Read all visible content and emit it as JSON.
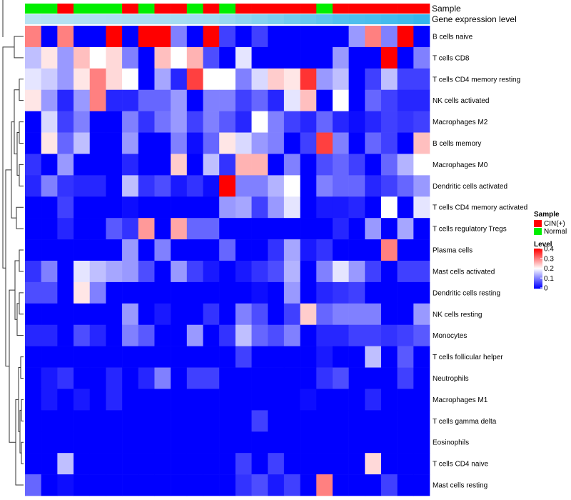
{
  "chart_data": {
    "type": "heatmap",
    "title": "",
    "annotations": [
      {
        "name": "Sample",
        "categories": [
          "CIN(+)",
          "Normal"
        ],
        "colors": {
          "CIN(+)": "#ff0000",
          "Normal": "#00ee00"
        },
        "values": [
          "Normal",
          "Normal",
          "CIN(+)",
          "Normal",
          "Normal",
          "Normal",
          "CIN(+)",
          "Normal",
          "CIN(+)",
          "CIN(+)",
          "Normal",
          "CIN(+)",
          "Normal",
          "CIN(+)",
          "CIN(+)",
          "CIN(+)",
          "CIN(+)",
          "CIN(+)",
          "Normal",
          "CIN(+)",
          "CIN(+)",
          "CIN(+)",
          "CIN(+)",
          "CIN(+)",
          "CIN(+)"
        ]
      },
      {
        "name": "Gene expression level",
        "color_low": "#b7e2f3",
        "color_high": "#35b6ec",
        "values": [
          0.35,
          0.36,
          0.37,
          0.38,
          0.39,
          0.4,
          0.41,
          0.42,
          0.43,
          0.44,
          0.45,
          0.46,
          0.5,
          0.55,
          0.6,
          0.65,
          0.7,
          0.75,
          0.8,
          0.85,
          0.88,
          0.9,
          0.93,
          0.96,
          1.0
        ]
      }
    ],
    "rows": [
      "B cells naive",
      "T cells CD8",
      "T cells CD4 memory resting",
      "NK cells activated",
      "Macrophages M2",
      "B cells memory",
      "Macrophages M0",
      "Dendritic cells activated",
      "T cells CD4 memory activated",
      "T cells regulatory  Tregs",
      "Plasma cells",
      "Mast cells activated",
      "Dendritic cells resting",
      "NK cells resting",
      "Monocytes",
      "T cells follicular helper",
      "Neutrophils",
      "Macrophages M1",
      "T cells gamma delta",
      "Eosinophils",
      "T cells CD4 naive",
      "Mast cells resting"
    ],
    "values": [
      [
        0.3,
        0,
        0.3,
        0,
        0,
        0.4,
        0,
        0.4,
        0.4,
        0.1,
        0,
        0.4,
        0.05,
        0,
        0.05,
        0,
        0,
        0,
        0,
        0,
        0.12,
        0.3,
        0.1,
        0.4,
        0
      ],
      [
        0.15,
        0.22,
        0.12,
        0.25,
        0.2,
        0.23,
        0.1,
        0,
        0.25,
        0.2,
        0.26,
        0.06,
        0,
        0.18,
        0,
        0,
        0,
        0,
        0,
        0.12,
        0,
        0,
        0.4,
        0,
        0.1
      ],
      [
        0.18,
        0.16,
        0.12,
        0.22,
        0.3,
        0.23,
        0.2,
        0,
        0.13,
        0.03,
        0.35,
        0.2,
        0.2,
        0.1,
        0.17,
        0.24,
        0.22,
        0.36,
        0.12,
        0.15,
        0,
        0.05,
        0.15,
        0.05,
        0.05
      ],
      [
        0.22,
        0.12,
        0.03,
        0.12,
        0.3,
        0.03,
        0.03,
        0.08,
        0.08,
        0.12,
        0,
        0.1,
        0.1,
        0.05,
        0.08,
        0.03,
        0.18,
        0.25,
        0,
        0.2,
        0,
        0.08,
        0.05,
        0.03,
        0.03
      ],
      [
        0,
        0.17,
        0.05,
        0.1,
        0,
        0,
        0.1,
        0.04,
        0.09,
        0.12,
        0.05,
        0.1,
        0.07,
        0.03,
        0.2,
        0.1,
        0.05,
        0.03,
        0.08,
        0.03,
        0.01,
        0.03,
        0.05,
        0.04,
        0.05
      ],
      [
        0,
        0.22,
        0.08,
        0.15,
        0,
        0,
        0.12,
        0,
        0,
        0.1,
        0.01,
        0.08,
        0.22,
        0.17,
        0.12,
        0.1,
        0,
        0.05,
        0.35,
        0.1,
        0,
        0.08,
        0.05,
        0,
        0.25
      ],
      [
        0.04,
        0,
        0.12,
        0,
        0,
        0,
        0.03,
        0,
        0,
        0.24,
        0,
        0.15,
        0.04,
        0.26,
        0.26,
        0,
        0.1,
        0,
        0.06,
        0.08,
        0.05,
        0,
        0.08,
        0.14,
        0.2
      ],
      [
        0.03,
        0.1,
        0.04,
        0.03,
        0.03,
        0,
        0.15,
        0.04,
        0.06,
        0.02,
        0.04,
        0.01,
        0.4,
        0.1,
        0.1,
        0.14,
        0.2,
        0,
        0.1,
        0.08,
        0.08,
        0.03,
        0.05,
        0.08,
        0.12
      ],
      [
        0,
        0,
        0.05,
        0,
        0,
        0,
        0.01,
        0,
        0,
        0,
        0,
        0,
        0.12,
        0.13,
        0.05,
        0.12,
        0.18,
        0,
        0.02,
        0.02,
        0.03,
        0,
        0.2,
        0,
        0.18
      ],
      [
        0,
        0,
        0.03,
        0,
        0,
        0.07,
        0.04,
        0.28,
        0,
        0.27,
        0.08,
        0.08,
        0,
        0,
        0,
        0,
        0,
        0,
        0,
        0.03,
        0,
        0.12,
        0,
        0.13,
        0
      ],
      [
        0,
        0,
        0,
        0,
        0,
        0,
        0.12,
        0,
        0.1,
        0,
        0,
        0,
        0.08,
        0,
        0,
        0.04,
        0.13,
        0.02,
        0.04,
        0,
        0,
        0,
        0.3,
        0,
        0
      ],
      [
        0.04,
        0.1,
        0,
        0.18,
        0.15,
        0.13,
        0.12,
        0.06,
        0,
        0.12,
        0.05,
        0.02,
        0,
        0.02,
        0.04,
        0.06,
        0.14,
        0,
        0.1,
        0.18,
        0.12,
        0.05,
        0,
        0.05,
        0.05
      ],
      [
        0.06,
        0.06,
        0,
        0.22,
        0.1,
        0,
        0,
        0,
        0,
        0,
        0,
        0,
        0,
        0,
        0.01,
        0,
        0.12,
        0,
        0.03,
        0.04,
        0.05,
        0,
        0,
        0,
        0
      ],
      [
        0,
        0,
        0,
        0,
        0,
        0,
        0.12,
        0,
        0.02,
        0,
        0,
        0.04,
        0,
        0.1,
        0.06,
        0,
        0.05,
        0.24,
        0.08,
        0.1,
        0.1,
        0.1,
        0,
        0,
        0.12
      ],
      [
        0.03,
        0.03,
        0,
        0.06,
        0.03,
        0,
        0.1,
        0.07,
        0,
        0,
        0.12,
        0,
        0.04,
        0.15,
        0.08,
        0.06,
        0.1,
        0,
        0.03,
        0.03,
        0.05,
        0.05,
        0.04,
        0.05,
        0.07
      ],
      [
        0,
        0,
        0,
        0,
        0,
        0,
        0,
        0,
        0,
        0,
        0,
        0,
        0,
        0.05,
        0,
        0,
        0,
        0,
        0.02,
        0,
        0,
        0.15,
        0,
        0.07,
        0
      ],
      [
        0,
        0.02,
        0.04,
        0,
        0,
        0.03,
        0,
        0.03,
        0.1,
        0,
        0.05,
        0.05,
        0,
        0,
        0,
        0,
        0,
        0,
        0.04,
        0.06,
        0,
        0,
        0,
        0.05,
        0
      ],
      [
        0,
        0.02,
        0,
        0.02,
        0,
        0.03,
        0,
        0,
        0,
        0,
        0,
        0,
        0,
        0,
        0,
        0,
        0,
        0.01,
        0,
        0,
        0,
        0.03,
        0,
        0,
        0
      ],
      [
        0,
        0,
        0,
        0,
        0,
        0,
        0,
        0,
        0,
        0,
        0,
        0,
        0,
        0,
        0.05,
        0,
        0,
        0,
        0,
        0,
        0,
        0,
        0,
        0,
        0
      ],
      [
        0,
        0,
        0,
        0,
        0,
        0,
        0,
        0,
        0,
        0,
        0,
        0,
        0,
        0,
        0,
        0,
        0,
        0,
        0,
        0,
        0,
        0,
        0,
        0,
        0
      ],
      [
        0,
        0,
        0.15,
        0,
        0,
        0,
        0,
        0,
        0,
        0,
        0,
        0,
        0,
        0.05,
        0,
        0.05,
        0,
        0,
        0,
        0,
        0,
        0.23,
        0,
        0,
        0
      ],
      [
        0.08,
        0,
        0.01,
        0,
        0,
        0,
        0,
        0,
        0,
        0,
        0,
        0,
        0,
        0.04,
        0.06,
        0.02,
        0.05,
        0,
        0.3,
        0,
        0,
        0,
        0.05,
        0,
        0
      ]
    ],
    "color_scale": {
      "min": 0,
      "mid": 0.2,
      "max": 0.4,
      "low": "#0000ff",
      "midcolor": "#ffffff",
      "high": "#ff0000"
    },
    "legend": {
      "sample_title": "Sample",
      "sample_entries": [
        "CIN(+)",
        "Normal"
      ],
      "level_title": "Level",
      "ticks": [
        "0.4",
        "0.3",
        "0.2",
        "0.1",
        "0"
      ],
      "placement": "right"
    }
  }
}
